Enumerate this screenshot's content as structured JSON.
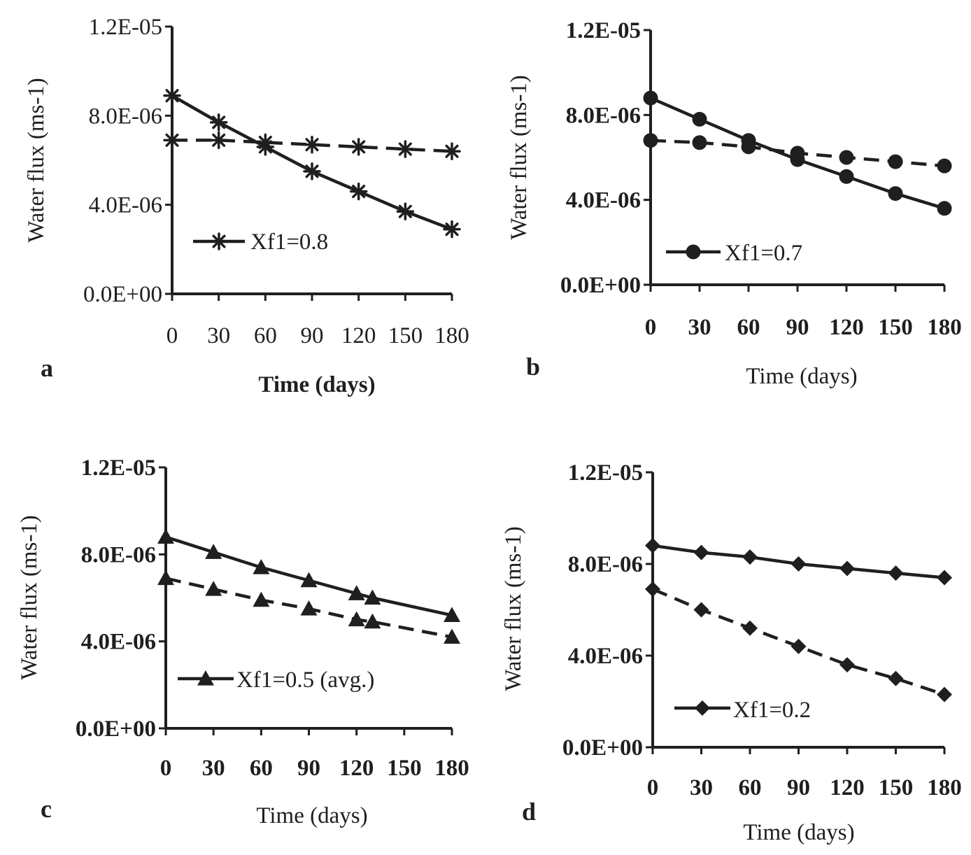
{
  "chart_data": [
    {
      "type": "line",
      "panel_label": "a",
      "xlabel": "Time (days)",
      "ylabel": "Water flux (ms-1)",
      "x": [
        0,
        30,
        60,
        90,
        120,
        150,
        180
      ],
      "xticks": [
        "0",
        "30",
        "60",
        "90",
        "120",
        "150",
        "180"
      ],
      "yticks": [
        "0.0E+00",
        "4.0E-06",
        "8.0E-06",
        "1.2E-05"
      ],
      "xlim": [
        0,
        180
      ],
      "ylim": [
        0,
        1.2e-05
      ],
      "marker": "asterisk",
      "legend": "bottom-left",
      "grid": false,
      "series": [
        {
          "name": "Xf1=0.8",
          "style": "solid",
          "x": [
            0,
            30,
            60,
            90,
            120,
            150,
            180
          ],
          "values": [
            8.9e-06,
            7.7e-06,
            6.6e-06,
            5.5e-06,
            4.6e-06,
            3.7e-06,
            2.9e-06
          ]
        },
        {
          "style": "dashed",
          "x": [
            0,
            30,
            60,
            90,
            120,
            150,
            180
          ],
          "values": [
            6.9e-06,
            6.9e-06,
            6.8e-06,
            6.7e-06,
            6.6e-06,
            6.5e-06,
            6.4e-06
          ]
        }
      ]
    },
    {
      "type": "line",
      "panel_label": "b",
      "xlabel": "Time (days)",
      "ylabel": "Water flux (ms-1)",
      "x": [
        0,
        30,
        60,
        90,
        120,
        150,
        180
      ],
      "xticks": [
        "0",
        "30",
        "60",
        "90",
        "120",
        "150",
        "180"
      ],
      "yticks": [
        "0.0E+00",
        "4.0E-06",
        "8.0E-06",
        "1.2E-05"
      ],
      "xlim": [
        0,
        180
      ],
      "ylim": [
        0,
        1.2e-05
      ],
      "marker": "circle",
      "legend": "bottom-left",
      "grid": false,
      "series": [
        {
          "name": "Xf1=0.7",
          "style": "solid",
          "x": [
            0,
            30,
            60,
            90,
            120,
            150,
            180
          ],
          "values": [
            8.8e-06,
            7.8e-06,
            6.8e-06,
            5.9e-06,
            5.1e-06,
            4.3e-06,
            3.6e-06
          ]
        },
        {
          "style": "dashed",
          "x": [
            0,
            30,
            60,
            90,
            120,
            150,
            180
          ],
          "values": [
            6.8e-06,
            6.7e-06,
            6.5e-06,
            6.2e-06,
            6e-06,
            5.8e-06,
            5.6e-06
          ]
        }
      ]
    },
    {
      "type": "line",
      "panel_label": "c",
      "xlabel": "Time (days)",
      "ylabel": "Water flux (ms-1)",
      "x": [
        0,
        30,
        60,
        90,
        120,
        130,
        180
      ],
      "xticks": [
        "0",
        "30",
        "60",
        "90",
        "120",
        "150",
        "180"
      ],
      "yticks": [
        "0.0E+00",
        "4.0E-06",
        "8.0E-06",
        "1.2E-05"
      ],
      "xlim": [
        0,
        180
      ],
      "ylim": [
        0,
        1.2e-05
      ],
      "marker": "triangle",
      "legend": "bottom-left",
      "grid": false,
      "series": [
        {
          "name": "Xf1=0.5 (avg.)",
          "style": "solid",
          "x": [
            0,
            30,
            60,
            90,
            120,
            130,
            180
          ],
          "values": [
            8.8e-06,
            8.1e-06,
            7.4e-06,
            6.8e-06,
            6.2e-06,
            6e-06,
            5.2e-06
          ]
        },
        {
          "style": "dashed",
          "x": [
            0,
            30,
            60,
            90,
            120,
            130,
            180
          ],
          "values": [
            6.9e-06,
            6.4e-06,
            5.9e-06,
            5.5e-06,
            5e-06,
            4.9e-06,
            4.2e-06
          ]
        }
      ]
    },
    {
      "type": "line",
      "panel_label": "d",
      "xlabel": "Time (days)",
      "ylabel": "Water flux (ms-1)",
      "x": [
        0,
        30,
        60,
        90,
        120,
        150,
        180
      ],
      "xticks": [
        "0",
        "30",
        "60",
        "90",
        "120",
        "150",
        "180"
      ],
      "yticks": [
        "0.0E+00",
        "4.0E-06",
        "8.0E-06",
        "1.2E-05"
      ],
      "xlim": [
        0,
        180
      ],
      "ylim": [
        0,
        1.2e-05
      ],
      "marker": "diamond",
      "legend": "bottom-left",
      "grid": false,
      "series": [
        {
          "name": "Xf1=0.2",
          "style": "solid",
          "x": [
            0,
            30,
            60,
            90,
            120,
            150,
            180
          ],
          "values": [
            8.8e-06,
            8.5e-06,
            8.3e-06,
            8e-06,
            7.8e-06,
            7.6e-06,
            7.4e-06
          ]
        },
        {
          "style": "dashed",
          "x": [
            0,
            30,
            60,
            90,
            120,
            150,
            180
          ],
          "values": [
            6.9e-06,
            6e-06,
            5.2e-06,
            4.4e-06,
            3.6e-06,
            3e-06,
            2.3e-06
          ]
        }
      ]
    }
  ],
  "colors": {
    "ink": "#1f1f1f",
    "background": "#ffffff"
  }
}
